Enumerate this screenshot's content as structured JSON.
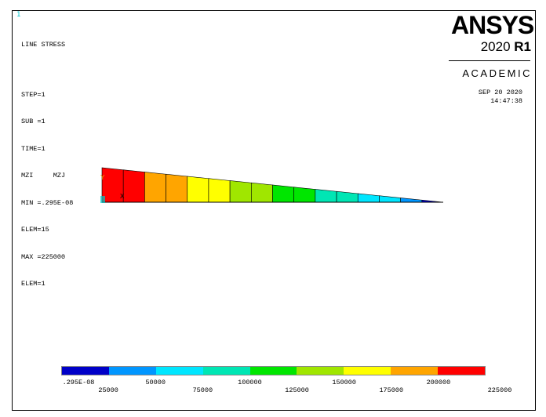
{
  "window_number": "1",
  "info": {
    "title": "LINE STRESS",
    "step": "STEP=1",
    "sub": "SUB =1",
    "time": "TIME=1",
    "items": "MZI     MZJ",
    "min": "MIN =.295E-08",
    "min_elem": "ELEM=15",
    "max": "MAX =225000",
    "max_elem": "ELEM=1"
  },
  "logo": {
    "brand": "ANSYS",
    "version_year": "2020",
    "version_release": "R1",
    "edition": "ACADEMIC"
  },
  "date": "SEP 20 2020",
  "time_of_day": "14:47:38",
  "legend": {
    "colors": [
      "#0000c8",
      "#0096ff",
      "#00e6ff",
      "#00e6b4",
      "#00e600",
      "#a0e600",
      "#ffff00",
      "#ffa500",
      "#ff0000"
    ],
    "labels_top": [
      ".295E-08",
      "50000",
      "100000",
      "150000",
      "200000"
    ],
    "labels_bottom": [
      "25000",
      "75000",
      "125000",
      "175000",
      "225000"
    ]
  },
  "plot": {
    "triad_label": "Y",
    "node_marker": "X",
    "element_colors": [
      "#ff0000",
      "#ff0000",
      "#ffa500",
      "#ffa500",
      "#ffff00",
      "#ffff00",
      "#a0e600",
      "#a0e600",
      "#00e600",
      "#00e600",
      "#00e6b4",
      "#00e6b4",
      "#00e6ff",
      "#00e6ff",
      "#0096ff",
      "#0000c8"
    ]
  }
}
